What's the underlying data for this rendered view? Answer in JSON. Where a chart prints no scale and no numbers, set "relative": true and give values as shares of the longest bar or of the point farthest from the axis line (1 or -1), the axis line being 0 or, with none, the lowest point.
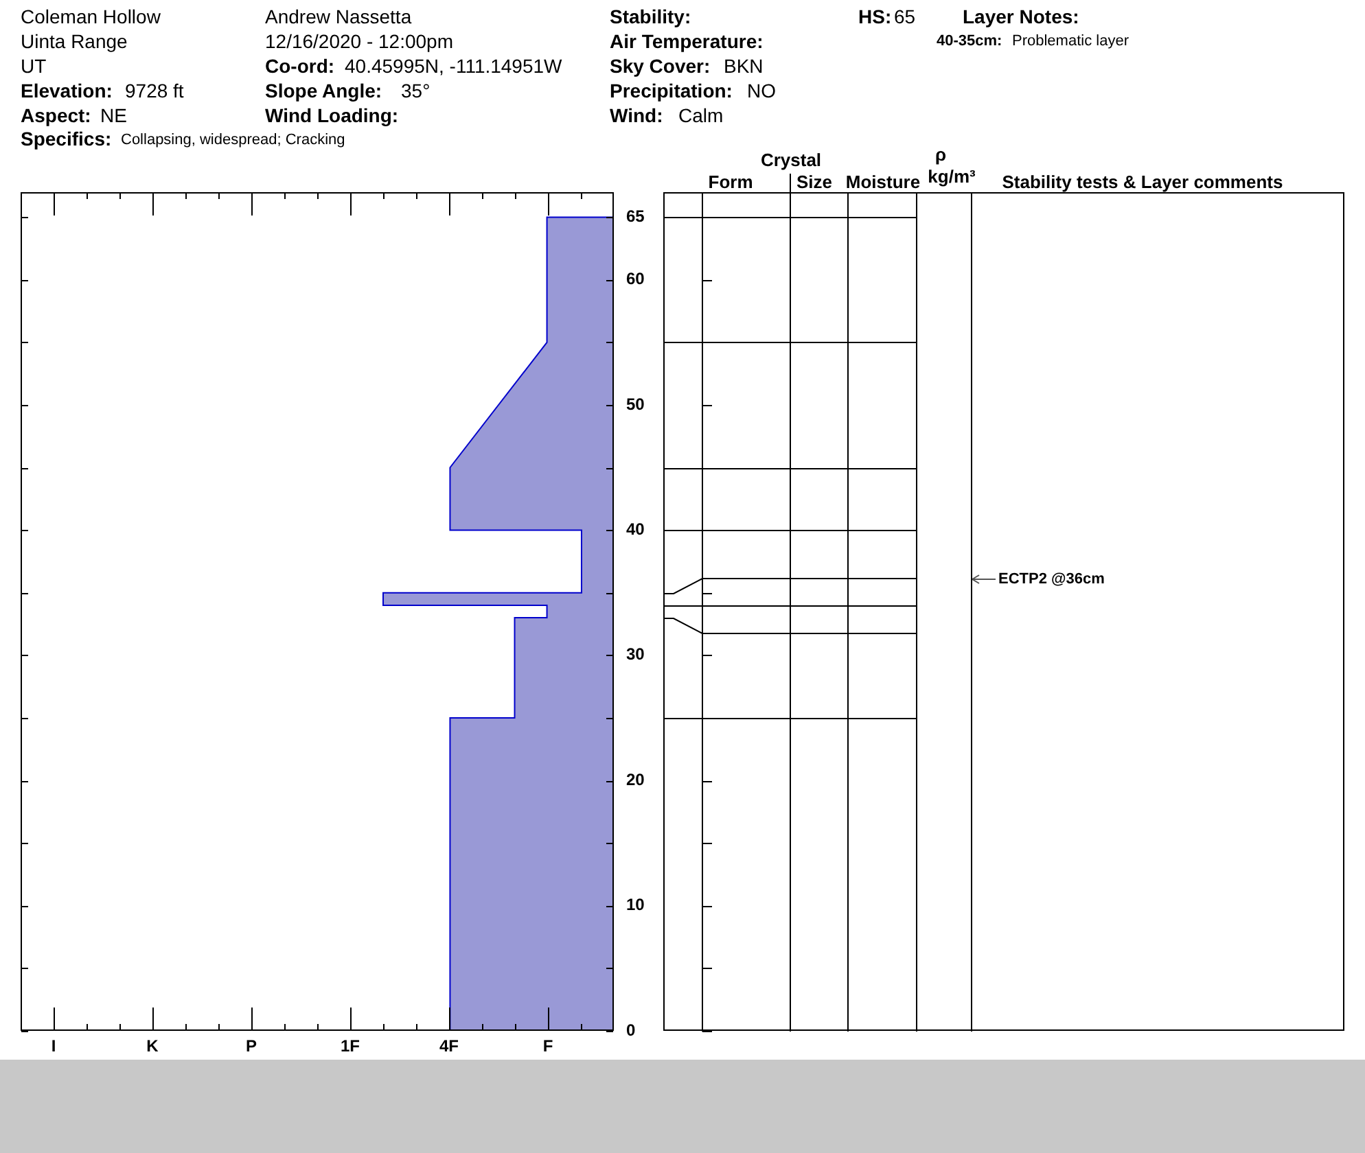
{
  "chart_data": {
    "type": "area",
    "orientation": "horizontal",
    "relative": true,
    "x": [
      0,
      25,
      25,
      33,
      33,
      34,
      34,
      35,
      35,
      40,
      40,
      45,
      55,
      65,
      65
    ],
    "series": [
      {
        "color": "#9999d6",
        "values": [
          -0.71,
          -0.71,
          -0.43,
          -0.43,
          -0.29,
          -0.29,
          -1,
          -1,
          -0.14,
          -0.14,
          -0.71,
          -0.71,
          -0.29,
          -0.29,
          0
        ]
      }
    ],
    "ylim": [
      0,
      67
    ],
    "yticks": [
      0,
      {
        "value": 5,
        "label": null
      },
      10,
      {
        "value": 15,
        "label": null
      },
      20,
      {
        "value": 25,
        "label": null
      },
      30,
      {
        "value": 35,
        "label": null
      },
      40,
      {
        "value": 45,
        "label": null
      },
      50,
      {
        "value": 55,
        "label": null
      },
      60,
      65
    ],
    "annotations": [
      "Coleman Hollow",
      "Uinta Range",
      "UT",
      "Elevation:",
      "9728 ft",
      "Aspect:",
      "NE",
      "Specifics:",
      "Collapsing, widespread; Cracking",
      "Andrew Nassetta",
      "12/16/2020 - 12:00pm",
      "Co-ord:",
      "40.45995N, -111.14951W",
      "Slope Angle:",
      "35°",
      "Wind Loading:",
      "Stability:",
      "Air Temperature:",
      "Sky Cover:",
      "BKN",
      "Precipitation:",
      "NO",
      "Wind:",
      "Calm",
      "HS:",
      "65",
      "Layer Notes:",
      "40-35cm:",
      "Problematic layer",
      "Crystal",
      "Form",
      "Size",
      "Moisture",
      "ρ",
      "kg/m³",
      "Stability tests & Layer comments",
      "ECTP2 @36cm",
      "I",
      "K",
      "P",
      "1F",
      "4F",
      "F"
    ]
  }
}
